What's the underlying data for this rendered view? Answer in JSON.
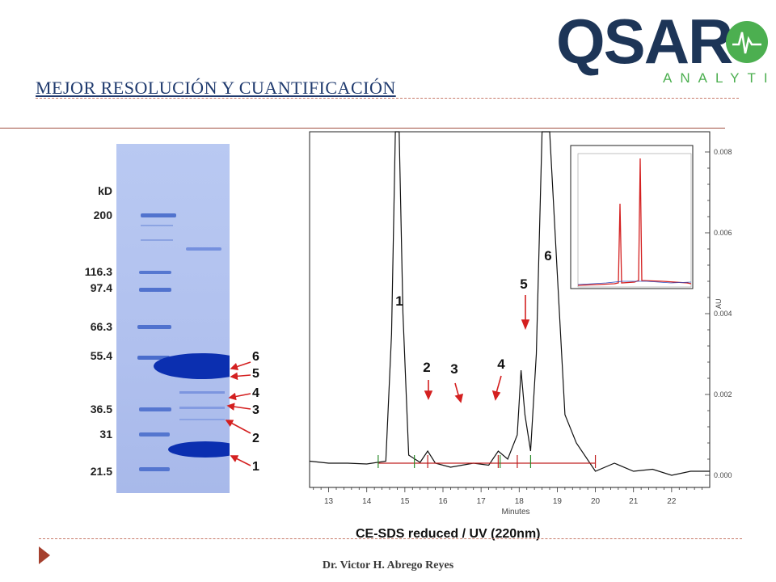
{
  "header": {
    "title": "MEJOR RESOLUCIÓN Y CUANTIFICACIÓN",
    "logo_main": "QSAR",
    "logo_sub": "ANALYTICS"
  },
  "gel": {
    "unit_label": "kD",
    "mw_markers": [
      "200",
      "116.3",
      "97.4",
      "66.3",
      "55.4",
      "36.5",
      "31",
      "21.5"
    ],
    "band_labels": [
      "6",
      "5",
      "4",
      "3",
      "2",
      "1"
    ]
  },
  "chart": {
    "peak_labels": [
      "1",
      "2",
      "3",
      "4",
      "5",
      "6"
    ],
    "x_label": "Minutes",
    "x_ticks": [
      "13",
      "14",
      "15",
      "16",
      "17",
      "18",
      "19",
      "20",
      "21",
      "22"
    ],
    "y_label": "AU",
    "y_ticks": [
      "0.008",
      "0.006",
      "0.004",
      "0.002",
      "0.000"
    ],
    "caption": "CE-SDS  reduced / UV (220nm)"
  },
  "chart_data": {
    "type": "line",
    "title": "CE-SDS  reduced / UV (220nm)",
    "xlabel": "Minutes",
    "ylabel": "AU",
    "xlim": [
      12.5,
      23.0
    ],
    "ylim": [
      -0.0003,
      0.0085
    ],
    "y_axis_side": "right",
    "series": [
      {
        "x": [
          12.5,
          13.0,
          13.5,
          14.0,
          14.5,
          14.65,
          14.75,
          14.85,
          14.95,
          15.1,
          15.4,
          15.6,
          15.8,
          16.2,
          16.8,
          17.2,
          17.45,
          17.7,
          17.95,
          18.05,
          18.15,
          18.3,
          18.45,
          18.6,
          18.8,
          19.0,
          19.2,
          19.5,
          20.0,
          20.5,
          21.0,
          21.5,
          22.0,
          22.5,
          23.0
        ],
        "y": [
          0.00035,
          0.0003,
          0.0003,
          0.00028,
          0.00035,
          0.0035,
          0.0085,
          0.0085,
          0.004,
          0.0005,
          0.00032,
          0.0006,
          0.0003,
          0.0002,
          0.0003,
          0.00025,
          0.0006,
          0.0004,
          0.001,
          0.0026,
          0.0015,
          0.0006,
          0.003,
          0.0085,
          0.0085,
          0.005,
          0.0015,
          0.0008,
          0.0001,
          0.0003,
          0.0001,
          0.00015,
          0.0,
          0.0001,
          0.0001
        ]
      }
    ],
    "annotations": [
      "1",
      "2",
      "3",
      "4",
      "5",
      "6"
    ],
    "grid": false
  }
}
